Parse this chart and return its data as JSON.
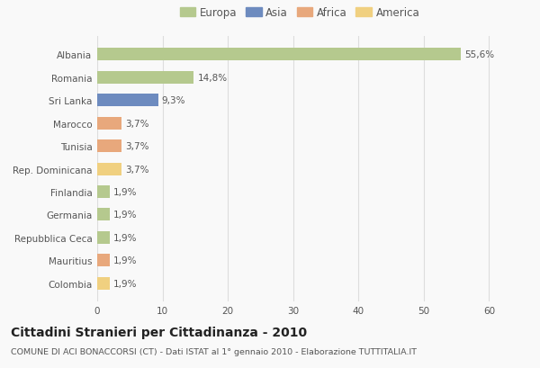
{
  "categories": [
    "Albania",
    "Romania",
    "Sri Lanka",
    "Marocco",
    "Tunisia",
    "Rep. Dominicana",
    "Finlandia",
    "Germania",
    "Repubblica Ceca",
    "Mauritius",
    "Colombia"
  ],
  "values": [
    55.6,
    14.8,
    9.3,
    3.7,
    3.7,
    3.7,
    1.9,
    1.9,
    1.9,
    1.9,
    1.9
  ],
  "labels": [
    "55,6%",
    "14,8%",
    "9,3%",
    "3,7%",
    "3,7%",
    "3,7%",
    "1,9%",
    "1,9%",
    "1,9%",
    "1,9%",
    "1,9%"
  ],
  "bar_colors": [
    "#b5c98e",
    "#b5c98e",
    "#6d8bbf",
    "#e8a87c",
    "#e8a87c",
    "#f0d080",
    "#b5c98e",
    "#b5c98e",
    "#b5c98e",
    "#e8a87c",
    "#f0d080"
  ],
  "legend_labels": [
    "Europa",
    "Asia",
    "Africa",
    "America"
  ],
  "legend_colors": [
    "#b5c98e",
    "#6d8bbf",
    "#e8a87c",
    "#f0d080"
  ],
  "xlim": [
    0,
    62
  ],
  "xticks": [
    0,
    10,
    20,
    30,
    40,
    50,
    60
  ],
  "title": "Cittadini Stranieri per Cittadinanza - 2010",
  "subtitle": "COMUNE DI ACI BONACCORSI (CT) - Dati ISTAT al 1° gennaio 2010 - Elaborazione TUTTITALIA.IT",
  "background_color": "#f9f9f9",
  "grid_color": "#dddddd",
  "bar_height": 0.55,
  "label_fontsize": 7.5,
  "tick_fontsize": 7.5,
  "title_fontsize": 10,
  "subtitle_fontsize": 6.8
}
